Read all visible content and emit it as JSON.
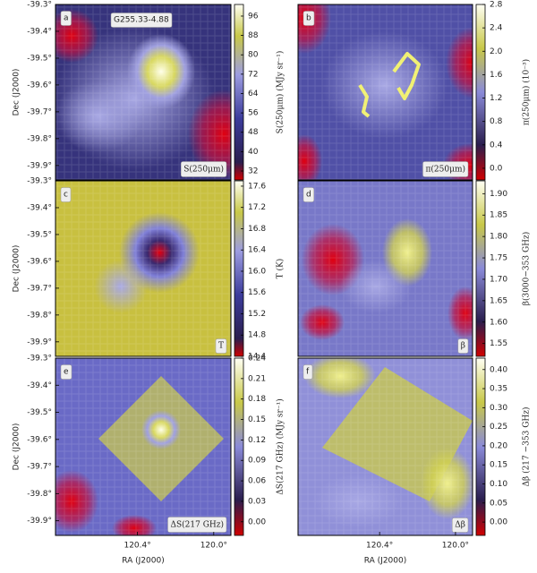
{
  "chart_data": [
    {
      "type": "heatmap",
      "panel": "a",
      "label": "S(250μm)",
      "annotation": "G255.33-4.88",
      "ylabel": "Dec (J2000)",
      "ylim": [
        -39.954,
        -39.3
      ],
      "yticks": [
        {
          "value": -39.3,
          "label": "-39.3°"
        },
        {
          "value": -39.4,
          "label": "-39.4°"
        },
        {
          "value": -39.5,
          "label": "-39.5°"
        },
        {
          "value": -39.6,
          "label": "-39.6°"
        },
        {
          "value": -39.7,
          "label": "-39.7°"
        },
        {
          "value": -39.8,
          "label": "-39.8°"
        },
        {
          "value": -39.9,
          "label": "-39.9°"
        }
      ],
      "colorbar": {
        "label": "S(250μm) (MJy sr⁻¹)",
        "lim": [
          28.3,
          100.8
        ],
        "ticks": [
          32,
          40,
          48,
          56,
          64,
          72,
          80,
          88,
          96
        ]
      }
    },
    {
      "type": "heatmap",
      "panel": "b",
      "label": "π(250μm)",
      "colorbar": {
        "label": "π(250μm) (10⁻³)",
        "lim": [
          -0.2,
          2.8
        ],
        "ticks": [
          {
            "value": 0,
            "label": "0.0"
          },
          0.4,
          0.8,
          1.2,
          1.6,
          {
            "value": 2,
            "label": "2.0"
          },
          2.4,
          2.8
        ]
      }
    },
    {
      "type": "heatmap",
      "panel": "c",
      "label": "T",
      "ylabel": "Dec (J2000)",
      "ylim": [
        -39.954,
        -39.3
      ],
      "yticks": [
        {
          "value": -39.3,
          "label": "-39.3°"
        },
        {
          "value": -39.4,
          "label": "-39.4°"
        },
        {
          "value": -39.5,
          "label": "-39.5°"
        },
        {
          "value": -39.6,
          "label": "-39.6°"
        },
        {
          "value": -39.7,
          "label": "-39.7°"
        },
        {
          "value": -39.8,
          "label": "-39.8°"
        },
        {
          "value": -39.9,
          "label": "-39.9°"
        }
      ],
      "colorbar": {
        "label": "T (K)",
        "lim": [
          14.4,
          17.7
        ],
        "ticks": [
          14.4,
          14.8,
          15.2,
          15.6,
          {
            "value": 16,
            "label": "16.0"
          },
          16.4,
          16.8,
          17.2,
          17.6
        ]
      }
    },
    {
      "type": "heatmap",
      "panel": "d",
      "label": "β",
      "colorbar": {
        "label": "β(3000−353 GHz)",
        "lim": [
          1.52,
          1.93
        ],
        "ticks": [
          1.55,
          {
            "value": 1.6,
            "label": "1.60"
          },
          1.65,
          {
            "value": 1.7,
            "label": "1.70"
          },
          1.75,
          {
            "value": 1.8,
            "label": "1.80"
          },
          1.85,
          {
            "value": 1.9,
            "label": "1.90"
          }
        ]
      }
    },
    {
      "type": "heatmap",
      "panel": "e",
      "label": "ΔS(217 GHz)",
      "ylabel": "Dec (J2000)",
      "xlabel": "RA (J2000)",
      "ylim": [
        -39.954,
        -39.3
      ],
      "yticks": [
        {
          "value": -39.3,
          "label": "-39.3°"
        },
        {
          "value": -39.4,
          "label": "-39.4°"
        },
        {
          "value": -39.5,
          "label": "-39.5°"
        },
        {
          "value": -39.6,
          "label": "-39.6°"
        },
        {
          "value": -39.7,
          "label": "-39.7°"
        },
        {
          "value": -39.8,
          "label": "-39.8°"
        },
        {
          "value": -39.9,
          "label": "-39.9°"
        }
      ],
      "xlim": [
        120.83,
        119.91
      ],
      "xticks": [
        {
          "value": 120.4,
          "label": "120.4°"
        },
        {
          "value": 120.0,
          "label": "120.0°"
        }
      ],
      "colorbar": {
        "label": "ΔS(217 GHz) (MJy sr⁻¹)",
        "lim": [
          -0.02,
          0.24
        ],
        "ticks": [
          {
            "value": 0,
            "label": "0.00"
          },
          0.03,
          0.06,
          0.09,
          0.12,
          0.15,
          0.18,
          0.21,
          0.24
        ]
      }
    },
    {
      "type": "heatmap",
      "panel": "f",
      "label": "Δβ",
      "xlabel": "RA (J2000)",
      "xlim": [
        120.83,
        119.91
      ],
      "xticks": [
        {
          "value": 120.4,
          "label": "120.4°"
        },
        {
          "value": 120.0,
          "label": "120.0°"
        }
      ],
      "colorbar": {
        "label": "Δβ (217 −353 GHz)",
        "lim": [
          -0.035,
          0.43
        ],
        "ticks": [
          {
            "value": 0,
            "label": "0.00"
          },
          0.05,
          {
            "value": 0.1,
            "label": "0.10"
          },
          0.15,
          {
            "value": 0.2,
            "label": "0.20"
          },
          0.25,
          {
            "value": 0.3,
            "label": "0.30"
          },
          0.35,
          {
            "value": 0.4,
            "label": "0.40"
          }
        ]
      }
    }
  ]
}
